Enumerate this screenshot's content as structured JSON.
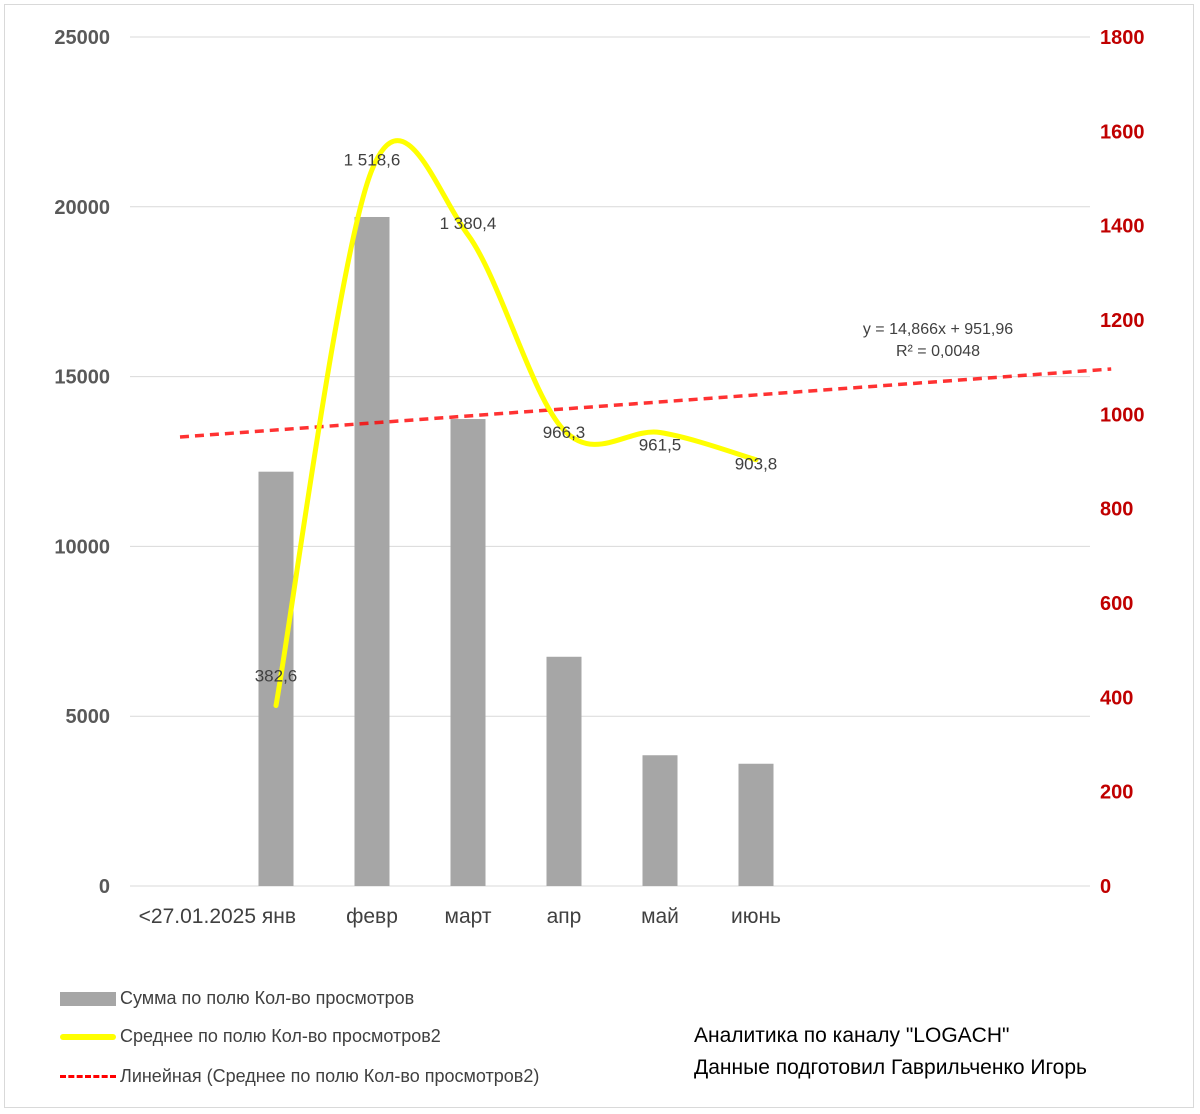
{
  "chart_data": {
    "type": "bar+line",
    "categories": [
      "<27.01.2025 янв",
      "февр",
      "март",
      "апр",
      "май",
      "июнь"
    ],
    "series": [
      {
        "name": "Сумма по полю Кол-во просмотров",
        "type": "bar",
        "axis": "left",
        "color": "#a6a6a6",
        "values": [
          12200,
          19700,
          13750,
          6750,
          3850,
          3600
        ]
      },
      {
        "name": "Среднее по полю Кол-во просмотров2",
        "type": "line",
        "axis": "right",
        "color": "#ffff00",
        "values": [
          382.6,
          1518.6,
          1380.4,
          966.3,
          961.5,
          903.8
        ],
        "labels": [
          "382,6",
          "1 518,6",
          "1 380,4",
          "966,3",
          "961,5",
          "903,8"
        ]
      },
      {
        "name": "Линейная (Среднее по полю Кол-во просмотров2)",
        "type": "trendline",
        "axis": "right",
        "color": "#ff0000",
        "slope": 14.866,
        "intercept": 951.96
      }
    ],
    "left_axis": {
      "min": 0,
      "max": 25000,
      "ticks": [
        "0",
        "5000",
        "10000",
        "15000",
        "20000",
        "25000"
      ]
    },
    "right_axis": {
      "min": 0,
      "max": 1800,
      "ticks": [
        "0",
        "200",
        "400",
        "600",
        "800",
        "1000",
        "1200",
        "1400",
        "1600",
        "1800"
      ],
      "color": "#c00000"
    },
    "trend_equation": "y = 14,866x + 951,96",
    "trend_r2": "R² = 0,0048",
    "grid": true,
    "legend_position": "bottom-left"
  },
  "credits": {
    "line1": "Аналитика по каналу \"LOGACH\"",
    "line2": "Данные подготовил Гаврильченко Игорь"
  }
}
